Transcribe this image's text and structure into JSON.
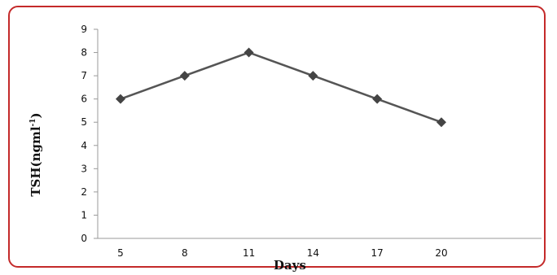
{
  "chart_data": {
    "type": "line",
    "x": [
      5,
      8,
      11,
      14,
      17,
      20
    ],
    "series": [
      {
        "values": [
          6,
          7,
          8,
          7,
          6,
          5
        ]
      }
    ],
    "xlabel": "Days",
    "ylabel": "TSH(ngml",
    "ylabel_superscript": "-1",
    "ylabel_suffix": ")",
    "ylim": [
      0,
      9
    ],
    "yticks": [
      0,
      1,
      2,
      3,
      4,
      5,
      6,
      7,
      8,
      9
    ],
    "marker": "diamond",
    "line_color": "#555555",
    "frame_color": "#c42a2a",
    "grid": false
  }
}
